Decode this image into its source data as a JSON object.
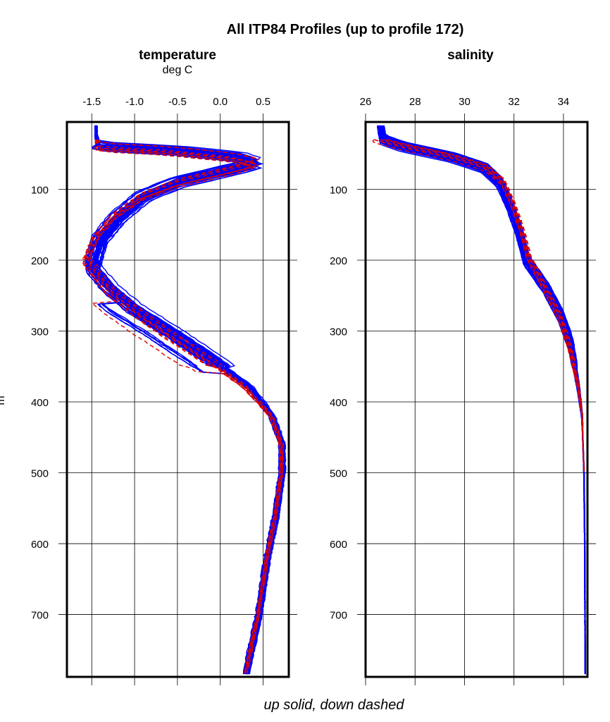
{
  "chart_data": [
    {
      "type": "line",
      "title": "All ITP84 Profiles (up to profile 172)",
      "panel_title": "temperature",
      "xlabel": "deg C",
      "ylabel": "m",
      "footer": "up solid, down dashed",
      "xlim": [
        -1.79,
        0.8
      ],
      "ylim": [
        788,
        5
      ],
      "x_ticks": [
        "-1.5",
        "-1.0",
        "-0.5",
        "0.0",
        "0.5"
      ],
      "x_tick_values": [
        -1.5,
        -1.0,
        -0.5,
        0.0,
        0.5
      ],
      "y_ticks": [
        "100",
        "200",
        "300",
        "400",
        "500",
        "600",
        "700"
      ],
      "y_tick_values": [
        100,
        200,
        300,
        400,
        500,
        600,
        700
      ],
      "grid": true,
      "series": [
        {
          "style": "up solid",
          "color": "#0000ff",
          "depth": [
            10,
            30,
            40,
            45,
            55,
            63,
            70,
            90,
            110,
            140,
            170,
            210,
            240,
            270,
            300,
            340,
            380,
            420,
            460,
            500,
            560,
            620,
            700,
            785
          ],
          "values": [
            -1.45,
            -1.45,
            -1.4,
            -0.6,
            0.2,
            0.4,
            0.2,
            -0.5,
            -0.9,
            -1.2,
            -1.4,
            -1.5,
            -1.3,
            -1.0,
            -0.6,
            -0.1,
            0.35,
            0.6,
            0.72,
            0.72,
            0.65,
            0.55,
            0.45,
            0.3
          ]
        },
        {
          "style": "down dashed",
          "color": "#dd0000",
          "depth": [
            30,
            40,
            45,
            55,
            63,
            70,
            90,
            110,
            140,
            170,
            200,
            240,
            270,
            300,
            340,
            380,
            420,
            460,
            500,
            560,
            620,
            700,
            785
          ],
          "values": [
            -1.45,
            -1.4,
            -0.6,
            0.2,
            0.45,
            0.25,
            -0.45,
            -0.9,
            -1.25,
            -1.45,
            -1.55,
            -1.3,
            -1.0,
            -0.65,
            -0.15,
            0.3,
            0.6,
            0.72,
            0.72,
            0.65,
            0.55,
            0.45,
            0.3
          ]
        }
      ]
    },
    {
      "type": "line",
      "panel_title": "salinity",
      "xlim": [
        26,
        34.97
      ],
      "ylim": [
        788,
        5
      ],
      "x_ticks": [
        "26",
        "28",
        "30",
        "32",
        "34"
      ],
      "x_tick_values": [
        26,
        28,
        30,
        32,
        34
      ],
      "y_ticks": [
        "100",
        "200",
        "300",
        "400",
        "500",
        "600",
        "700"
      ],
      "y_tick_values": [
        100,
        200,
        300,
        400,
        500,
        600,
        700
      ],
      "grid": true,
      "series": [
        {
          "style": "up solid",
          "color": "#0000ff",
          "depth": [
            10,
            30,
            40,
            55,
            70,
            90,
            120,
            160,
            200,
            240,
            280,
            320,
            380,
            420,
            500,
            600,
            785
          ],
          "values": [
            26.6,
            26.7,
            27.5,
            29.5,
            30.8,
            31.4,
            31.8,
            32.2,
            32.5,
            33.3,
            33.9,
            34.3,
            34.6,
            34.75,
            34.83,
            34.86,
            34.88
          ]
        },
        {
          "style": "down dashed",
          "color": "#dd0000",
          "depth": [
            30,
            40,
            55,
            70,
            90,
            120,
            160,
            200,
            240,
            280,
            320,
            380,
            420,
            500
          ],
          "values": [
            26.3,
            27.4,
            29.4,
            30.8,
            31.5,
            31.9,
            32.3,
            32.6,
            33.2,
            33.8,
            34.2,
            34.6,
            34.75,
            34.83
          ]
        }
      ]
    }
  ]
}
